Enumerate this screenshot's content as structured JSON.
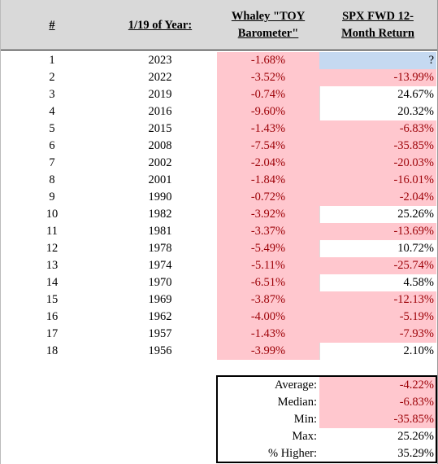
{
  "table": {
    "header": [
      "#",
      "1/19 of Year:",
      "Whaley \"TOY Barometer\"",
      "SPX FWD 12-Month Return"
    ],
    "rows": [
      [
        "1",
        "2023",
        "-1.68%",
        "?"
      ],
      [
        "2",
        "2022",
        "-3.52%",
        "-13.99%"
      ],
      [
        "3",
        "2019",
        "-0.74%",
        "24.67%"
      ],
      [
        "4",
        "2016",
        "-9.60%",
        "20.32%"
      ],
      [
        "5",
        "2015",
        "-1.43%",
        "-6.83%"
      ],
      [
        "6",
        "2008",
        "-7.54%",
        "-35.85%"
      ],
      [
        "7",
        "2002",
        "-2.04%",
        "-20.03%"
      ],
      [
        "8",
        "2001",
        "-1.84%",
        "-16.01%"
      ],
      [
        "9",
        "1990",
        "-0.72%",
        "-2.04%"
      ],
      [
        "10",
        "1982",
        "-3.92%",
        "25.26%"
      ],
      [
        "11",
        "1981",
        "-3.37%",
        "-13.69%"
      ],
      [
        "12",
        "1978",
        "-5.49%",
        "10.72%"
      ],
      [
        "13",
        "1974",
        "-5.11%",
        "-25.74%"
      ],
      [
        "14",
        "1970",
        "-6.51%",
        "4.58%"
      ],
      [
        "15",
        "1969",
        "-3.87%",
        "-12.13%"
      ],
      [
        "16",
        "1962",
        "-4.00%",
        "-5.19%"
      ],
      [
        "17",
        "1957",
        "-1.43%",
        "-7.93%"
      ],
      [
        "18",
        "1956",
        "-3.99%",
        "2.10%"
      ]
    ]
  },
  "summary": [
    [
      "Average:",
      "-4.22%"
    ],
    [
      "Median:",
      "-6.83%"
    ],
    [
      "Min:",
      "-35.85%"
    ],
    [
      "Max:",
      "25.26%"
    ],
    [
      "% Higher:",
      "35.29%"
    ]
  ]
}
